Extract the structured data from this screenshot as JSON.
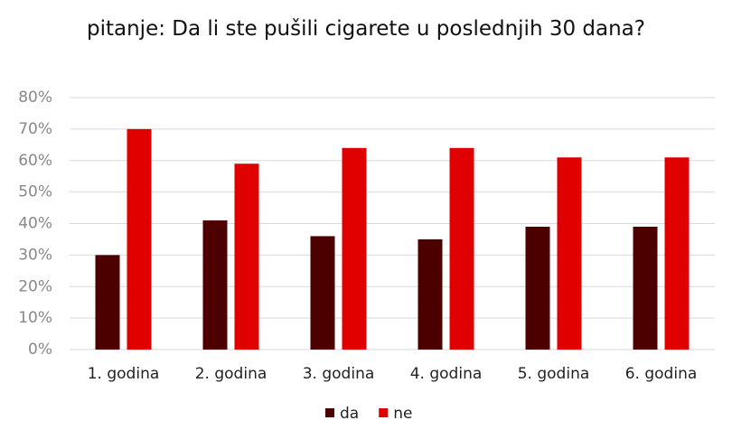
{
  "chart_data": {
    "type": "bar",
    "title": "pitanje: Da li ste pušili cigarete u poslednjih 30 dana?",
    "categories": [
      "1. godina",
      "2. godina",
      "3. godina",
      "4. godina",
      "5. godina",
      "6. godina"
    ],
    "series": [
      {
        "name": "da",
        "color": "#4d0000",
        "values": [
          30,
          41,
          36,
          35,
          39,
          39
        ]
      },
      {
        "name": "ne",
        "color": "#e00000",
        "values": [
          70,
          59,
          64,
          64,
          61,
          61
        ]
      }
    ],
    "ylim": [
      0,
      80
    ],
    "yticks": [
      {
        "value": 0,
        "label": "0%"
      },
      {
        "value": 10,
        "label": "10%"
      },
      {
        "value": 20,
        "label": "20%"
      },
      {
        "value": 30,
        "label": "30%"
      },
      {
        "value": 40,
        "label": "40%"
      },
      {
        "value": 50,
        "label": "50%"
      },
      {
        "value": 60,
        "label": "60%"
      },
      {
        "value": 70,
        "label": "70%"
      },
      {
        "value": 80,
        "label": "80%"
      }
    ],
    "grid": true
  }
}
